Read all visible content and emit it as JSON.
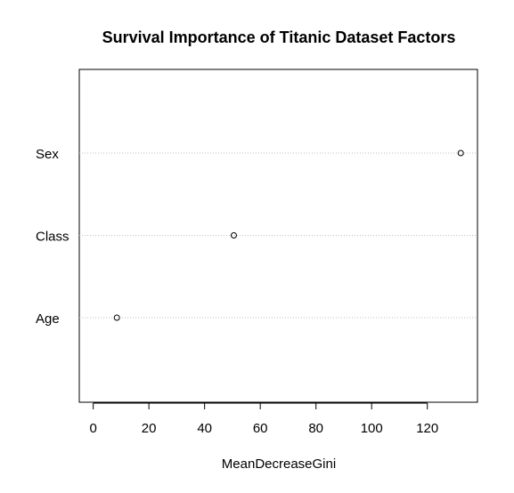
{
  "chart_data": {
    "type": "scatter",
    "title": "Survival Importance of Titanic Dataset Factors",
    "xlabel": "MeanDecreaseGini",
    "ylabel": "",
    "categories": [
      "Sex",
      "Class",
      "Age"
    ],
    "values": [
      132,
      50.5,
      8.5
    ],
    "xlim": [
      -5,
      138
    ],
    "xticks": [
      0,
      20,
      40,
      60,
      80,
      100,
      120
    ],
    "grid": "dotted horizontal lines at each category",
    "legend": "none",
    "colors": {
      "point": "#000000",
      "gridline": "#bebebe",
      "frame": "#000000"
    }
  }
}
